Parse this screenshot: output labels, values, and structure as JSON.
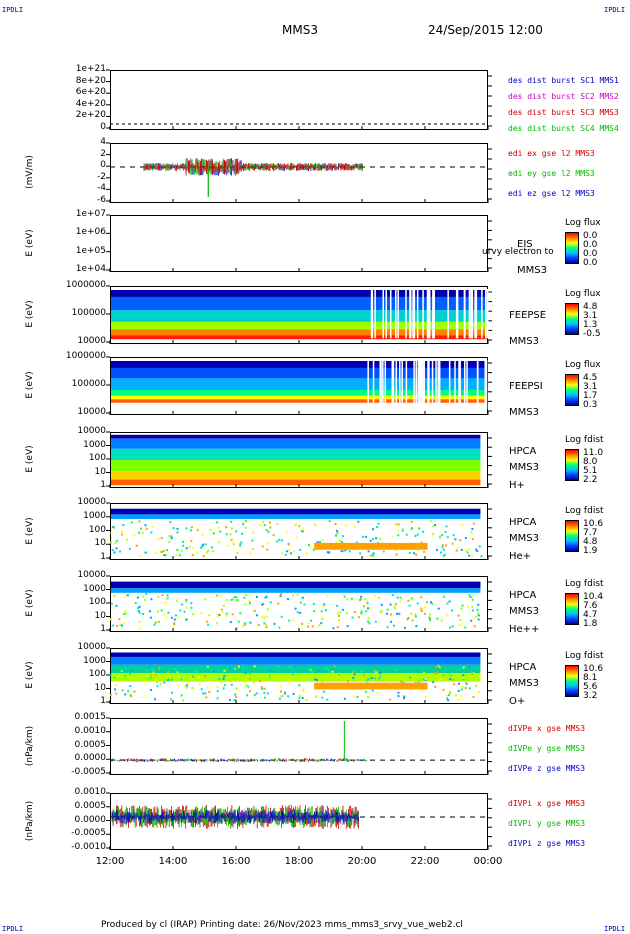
{
  "corners": {
    "tl": "IPDLI",
    "tr": "IPDLI",
    "bl": "IPDLI",
    "br": "IPDLI"
  },
  "header": {
    "spacecraft": "MMS3",
    "date": "24/Sep/2015 12:00"
  },
  "footer": {
    "text": "Produced by cl (IRAP)   Printing date: 26/Nov/2023   mms_mms3_srvy_vue_web2.cl"
  },
  "x_axis": {
    "ticks": [
      "12:00",
      "14:00",
      "16:00",
      "18:00",
      "20:00",
      "22:00",
      "00:00"
    ]
  },
  "panels": [
    {
      "id": "dist",
      "ylabel": "",
      "yticks": [
        "1e+21",
        "8e+20",
        "6e+20",
        "4e+20",
        "2e+20",
        "0"
      ],
      "legend": [
        {
          "text": "des dist burst SC1 MMS1",
          "color": "#0000cc"
        },
        {
          "text": "des dist burst SC2 MMS2",
          "color": "#cc00cc"
        },
        {
          "text": "des dist burst SC3 MMS3",
          "color": "#cc0000"
        },
        {
          "text": "des dist burst SC4 MMS4",
          "color": "#00bb00"
        }
      ]
    },
    {
      "id": "edi",
      "ylabel": "(mV/m)",
      "yticks": [
        "4",
        "2",
        "0",
        "-2",
        "-4",
        "-6"
      ],
      "legend": [
        {
          "text": "edi ex gse l2 MMS3",
          "color": "#cc0000"
        },
        {
          "text": "edi ey gse l2 MMS3",
          "color": "#00bb00"
        },
        {
          "text": "edi ez gse l2 MMS3",
          "color": "#0000cc"
        }
      ]
    },
    {
      "id": "eis",
      "ylabel": "E (eV)",
      "yticks": [
        "1e+07",
        "1e+06",
        "1e+05",
        "1e+04"
      ],
      "rlabels": [
        "EIS",
        "MMS3"
      ],
      "overlay": "urvy electron to",
      "cbar": {
        "title": "Log flux",
        "values": [
          "0.0",
          "0.0",
          "0.0",
          "0.0"
        ]
      }
    },
    {
      "id": "feepse",
      "ylabel": "E (eV)",
      "yticks": [
        "1000000",
        "100000",
        "10000"
      ],
      "rlabels": [
        "FEEPSE",
        "MMS3"
      ],
      "cbar": {
        "title": "Log flux",
        "values": [
          "4.8",
          "3.1",
          "1.3",
          "-0.5"
        ]
      }
    },
    {
      "id": "feepsi",
      "ylabel": "E (eV)",
      "yticks": [
        "1000000",
        "100000",
        "10000"
      ],
      "rlabels": [
        "FEEPSI",
        "MMS3"
      ],
      "cbar": {
        "title": "Log flux",
        "values": [
          "4.5",
          "3.1",
          "1.7",
          "0.3"
        ]
      }
    },
    {
      "id": "hpcah",
      "ylabel": "E (eV)",
      "yticks": [
        "10000",
        "1000",
        "100",
        "10",
        "1"
      ],
      "rlabels": [
        "HPCA",
        "MMS3",
        "H+"
      ],
      "cbar": {
        "title": "Log fdist",
        "values": [
          "11.0",
          "8.0",
          "5.1",
          "2.2"
        ]
      }
    },
    {
      "id": "hpcahe",
      "ylabel": "E (eV)",
      "yticks": [
        "10000",
        "1000",
        "100",
        "10",
        "1"
      ],
      "rlabels": [
        "HPCA",
        "MMS3",
        "He+"
      ],
      "cbar": {
        "title": "Log fdist",
        "values": [
          "10.6",
          "7.7",
          "4.8",
          "1.9"
        ]
      }
    },
    {
      "id": "hpcahepp",
      "ylabel": "E (eV)",
      "yticks": [
        "10000",
        "1000",
        "100",
        "10",
        "1"
      ],
      "rlabels": [
        "HPCA",
        "MMS3",
        "He++"
      ],
      "cbar": {
        "title": "Log fdist",
        "values": [
          "10.4",
          "7.6",
          "4.7",
          "1.8"
        ]
      }
    },
    {
      "id": "hpcao",
      "ylabel": "E (eV)",
      "yticks": [
        "10000",
        "1000",
        "100",
        "10",
        "1"
      ],
      "rlabels": [
        "HPCA",
        "MMS3",
        "O+"
      ],
      "cbar": {
        "title": "Log fdist",
        "values": [
          "10.6",
          "8.1",
          "5.6",
          "3.2"
        ]
      }
    },
    {
      "id": "dpe",
      "ylabel": "(nPa/km)",
      "yticks": [
        "0.0015",
        "0.0010",
        "0.0005",
        "0.0000",
        "-0.0005"
      ],
      "legend": [
        {
          "text": "dIVPe x gse MMS3",
          "color": "#cc0000"
        },
        {
          "text": "dIVPe y gse MMS3",
          "color": "#00bb00"
        },
        {
          "text": "dIVPe z gse MMS3",
          "color": "#0000cc"
        }
      ]
    },
    {
      "id": "dpi",
      "ylabel": "(nPa/km)",
      "yticks": [
        "0.0010",
        "0.0005",
        "0.0000",
        "-0.0005",
        "-0.0010"
      ],
      "legend": [
        {
          "text": "dIVPi x gse MMS3",
          "color": "#cc0000"
        },
        {
          "text": "dIVPi y gse MMS3",
          "color": "#00bb00"
        },
        {
          "text": "dIVPi z gse MMS3",
          "color": "#0000cc"
        }
      ]
    }
  ],
  "chart_data": {
    "type": "heatmap",
    "title": "MMS3",
    "x": [
      "12:00",
      "14:00",
      "16:00",
      "18:00",
      "20:00",
      "22:00",
      "00:00"
    ],
    "panels": [
      {
        "name": "des dist burst",
        "ylim": [
          0,
          1e+21
        ],
        "values": []
      },
      {
        "name": "edi e gse l2 MMS3",
        "ylabel": "(mV/m)",
        "ylim": [
          -6,
          4
        ],
        "note": "data 13:00-20:00, spikes to ~3 and -5 near 15:00"
      },
      {
        "name": "EIS MMS3",
        "ylabel": "E (eV)",
        "ylim": [
          10000.0,
          10000000.0
        ],
        "zlabel": "Log flux",
        "zrange": [
          0.0,
          0.0
        ]
      },
      {
        "name": "FEEPSE MMS3",
        "ylabel": "E (eV)",
        "ylim": [
          10000.0,
          1000000.0
        ],
        "zlabel": "Log flux",
        "zrange": [
          -0.5,
          4.8
        ]
      },
      {
        "name": "FEEPSI MMS3",
        "ylabel": "E (eV)",
        "ylim": [
          10000.0,
          1000000.0
        ],
        "zlabel": "Log flux",
        "zrange": [
          0.3,
          4.5
        ]
      },
      {
        "name": "HPCA MMS3 H+",
        "ylabel": "E (eV)",
        "ylim": [
          1,
          10000
        ],
        "zlabel": "Log fdist",
        "zrange": [
          2.2,
          11.0
        ]
      },
      {
        "name": "HPCA MMS3 He+",
        "ylabel": "E (eV)",
        "ylim": [
          1,
          10000
        ],
        "zlabel": "Log fdist",
        "zrange": [
          1.9,
          10.6
        ]
      },
      {
        "name": "HPCA MMS3 He++",
        "ylabel": "E (eV)",
        "ylim": [
          1,
          10000
        ],
        "zlabel": "Log fdist",
        "zrange": [
          1.8,
          10.4
        ]
      },
      {
        "name": "HPCA MMS3 O+",
        "ylabel": "E (eV)",
        "ylim": [
          1,
          10000
        ],
        "zlabel": "Log fdist",
        "zrange": [
          3.2,
          10.6
        ]
      },
      {
        "name": "dIVPe gse MMS3",
        "ylabel": "(nPa/km)",
        "ylim": [
          -0.0005,
          0.0015
        ]
      },
      {
        "name": "dIVPi gse MMS3",
        "ylabel": "(nPa/km)",
        "ylim": [
          -0.001,
          0.001
        ]
      }
    ]
  }
}
